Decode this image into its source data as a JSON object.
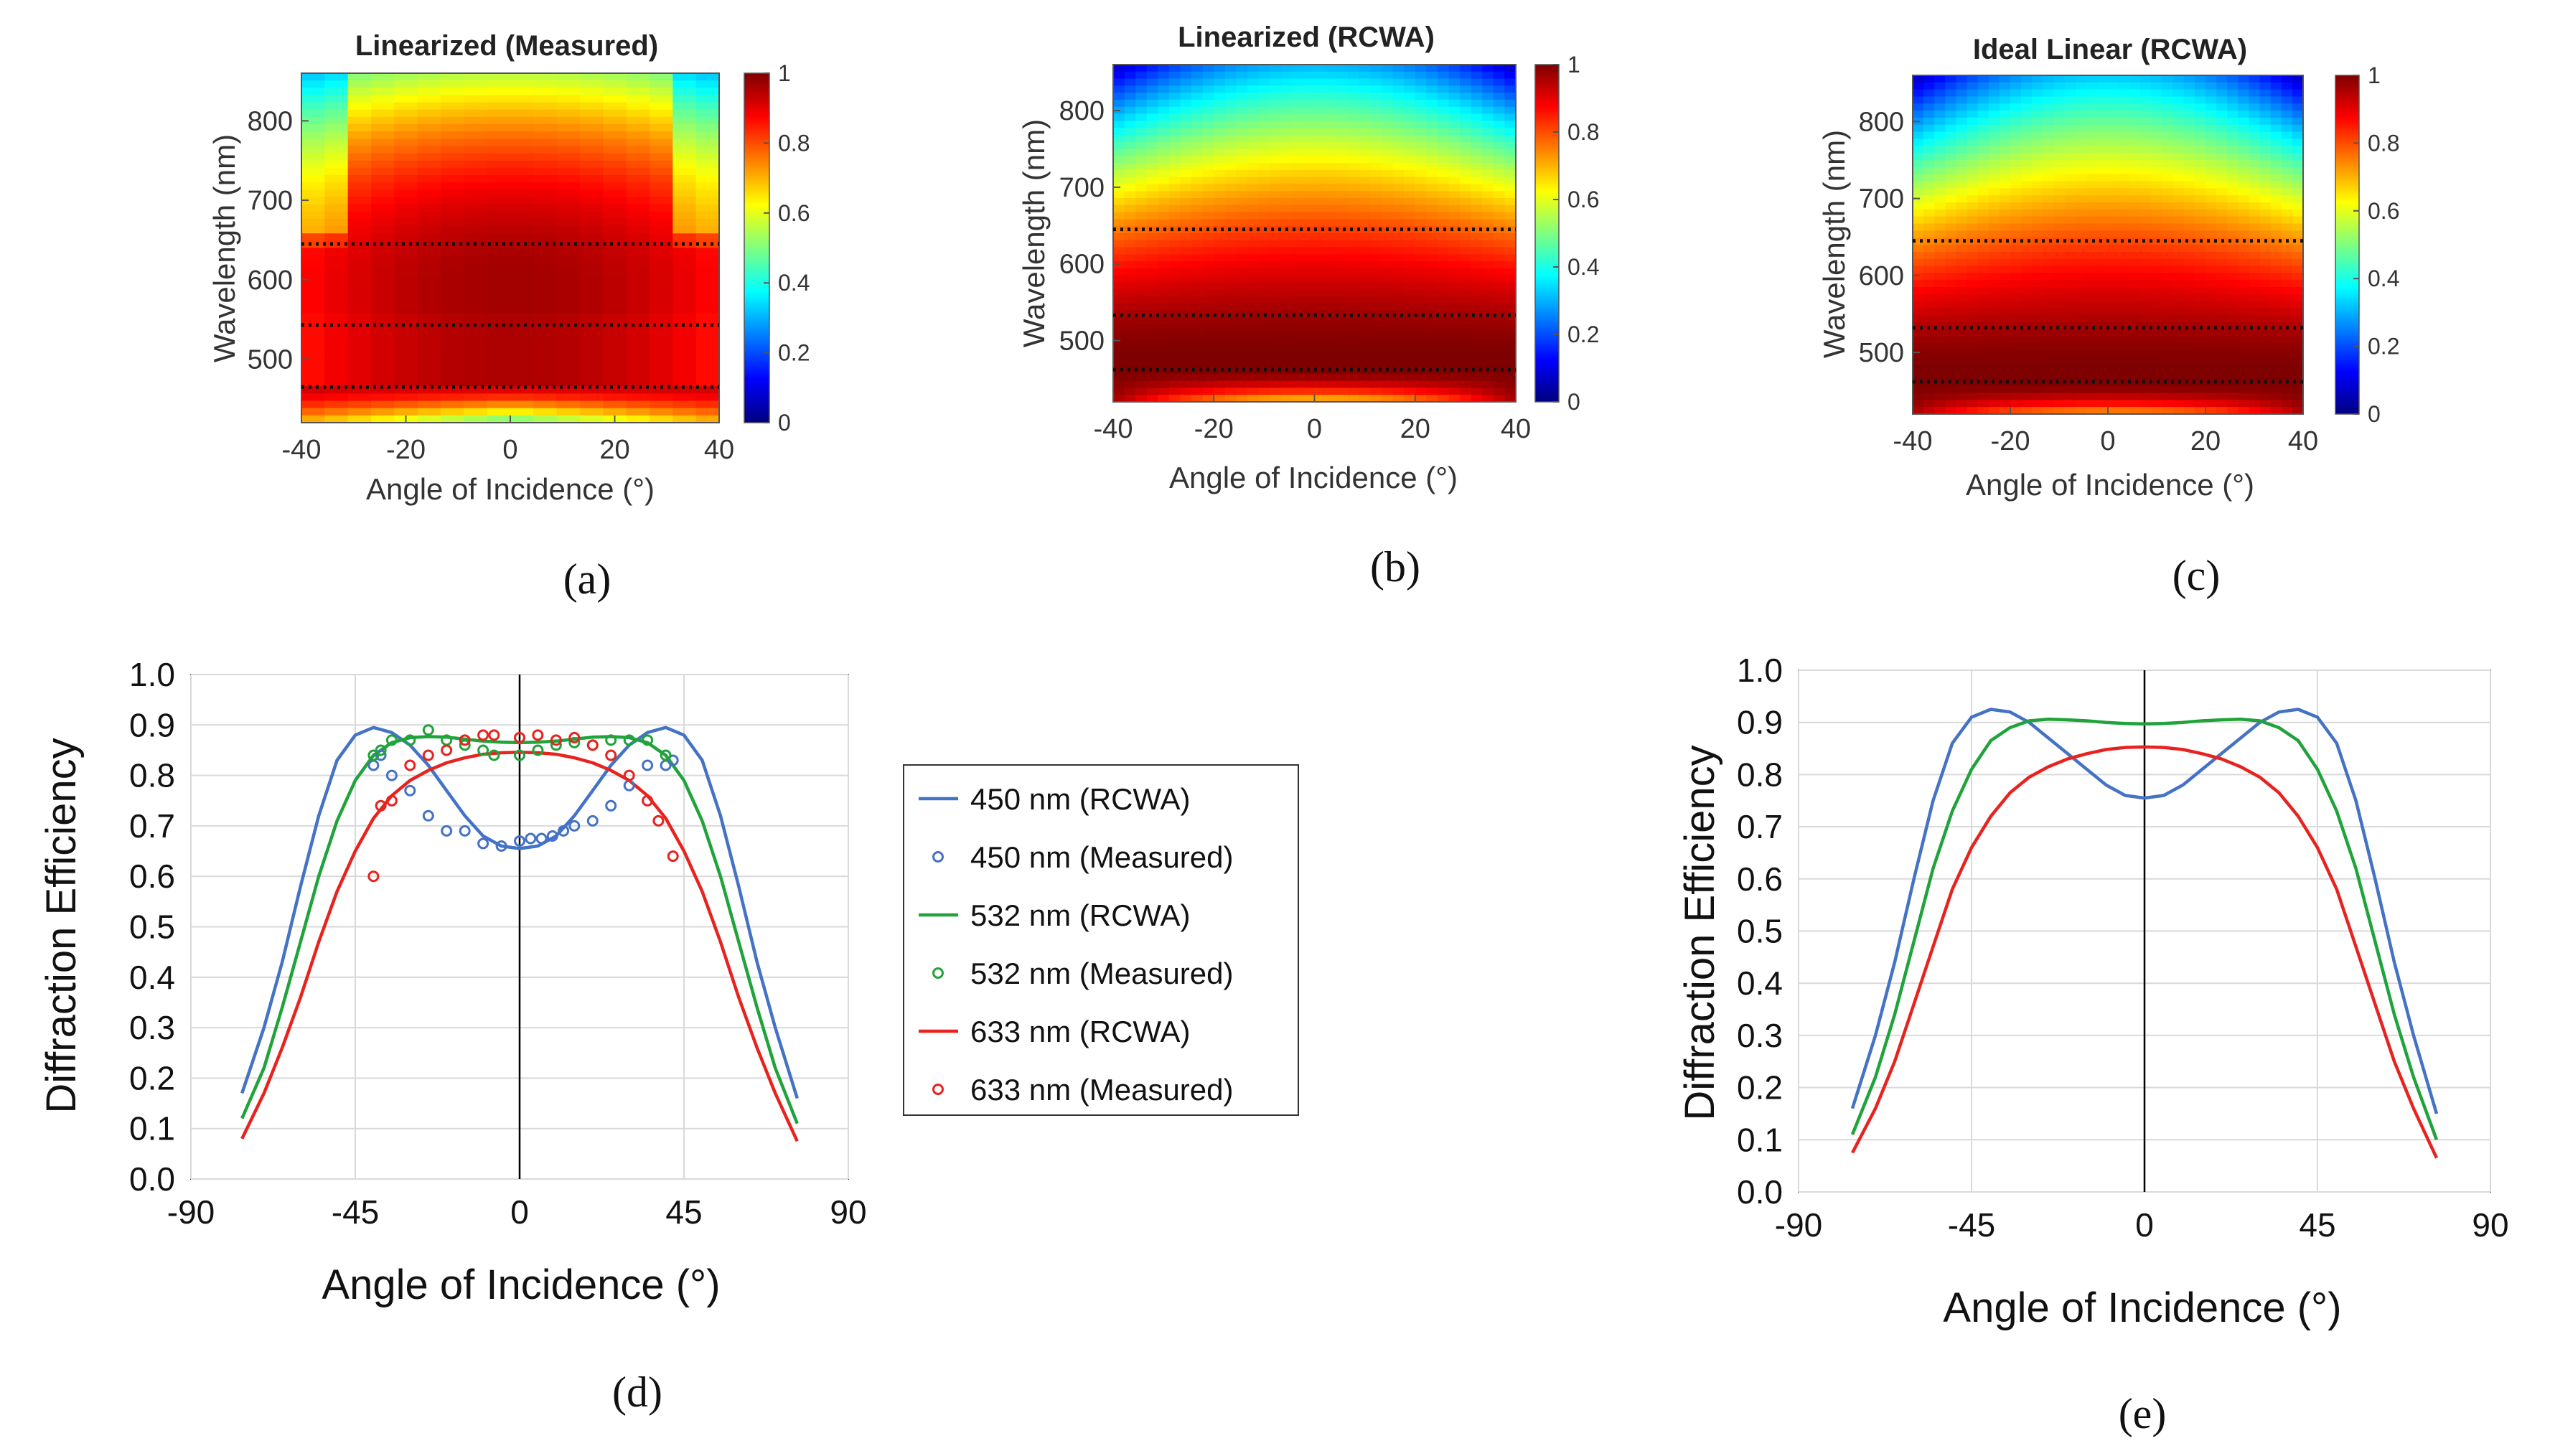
{
  "panels": {
    "a": "(a)",
    "b": "(b)",
    "c": "(c)",
    "d": "(d)",
    "e": "(e)"
  },
  "colors": {
    "blue": "#4472C4",
    "green": "#1FA33A",
    "red": "#E8231F",
    "jet": [
      "#00007F",
      "#0000FF",
      "#007FFF",
      "#00FFFF",
      "#7FFF7F",
      "#FFFF00",
      "#FF7F00",
      "#FF0000",
      "#7F0000"
    ]
  },
  "chart_data": [
    {
      "id": "a",
      "type": "heatmap",
      "title": "Linearized (Measured)",
      "xlabel": "Angle of Incidence (°)",
      "ylabel": "Wavelength (nm)",
      "xlim": [
        -40,
        40
      ],
      "ylim": [
        420,
        860
      ],
      "xticks": [
        -40,
        -20,
        0,
        20,
        40
      ],
      "yticks": [
        500,
        600,
        700,
        800
      ],
      "colorbar": {
        "ticks": [
          0,
          0.2,
          0.4,
          0.6,
          0.8,
          1
        ],
        "range": [
          0,
          1
        ]
      },
      "dotted_lines_nm": [
        465,
        543,
        645
      ],
      "model": "measured"
    },
    {
      "id": "b",
      "type": "heatmap",
      "title": "Linearized (RCWA)",
      "xlabel": "Angle of Incidence (°)",
      "ylabel": "Wavelength (nm)",
      "xlim": [
        -40,
        40
      ],
      "ylim": [
        420,
        860
      ],
      "xticks": [
        -40,
        -20,
        0,
        20,
        40
      ],
      "yticks": [
        500,
        600,
        700,
        800
      ],
      "colorbar": {
        "ticks": [
          0,
          0.2,
          0.4,
          0.6,
          0.8,
          1
        ],
        "range": [
          0,
          1
        ]
      },
      "dotted_lines_nm": [
        462,
        533,
        645
      ],
      "model": "rcwa"
    },
    {
      "id": "c",
      "type": "heatmap",
      "title": "Ideal Linear (RCWA)",
      "xlabel": "Angle of Incidence (°)",
      "ylabel": "Wavelength (nm)",
      "xlim": [
        -40,
        40
      ],
      "ylim": [
        420,
        860
      ],
      "xticks": [
        -40,
        -20,
        0,
        20,
        40
      ],
      "yticks": [
        500,
        600,
        700,
        800
      ],
      "colorbar": {
        "ticks": [
          0,
          0.2,
          0.4,
          0.6,
          0.8,
          1
        ],
        "range": [
          0,
          1
        ]
      },
      "dotted_lines_nm": [
        462,
        532,
        645
      ],
      "model": "ideal"
    },
    {
      "id": "d",
      "type": "line",
      "xlabel": "Angle of Incidence (°)",
      "ylabel": "Diffraction Efficiency",
      "xlim": [
        -90,
        90
      ],
      "ylim": [
        0,
        1
      ],
      "xticks": [
        -90,
        -45,
        0,
        45,
        90
      ],
      "yticks": [
        "0.0",
        "0.1",
        "0.2",
        "0.3",
        "0.4",
        "0.5",
        "0.6",
        "0.7",
        "0.8",
        "0.9",
        "1.0"
      ],
      "legend": [
        "450 nm (RCWA)",
        "450 nm (Measured)",
        "532 nm (RCWA)",
        "532 nm (Measured)",
        "633 nm (RCWA)",
        "633 nm (Measured)"
      ],
      "x": [
        -76,
        -70,
        -65,
        -60,
        -55,
        -50,
        -45,
        -40,
        -35,
        -30,
        -25,
        -20,
        -15,
        -10,
        -5,
        0,
        5,
        10,
        15,
        20,
        25,
        30,
        35,
        40,
        45,
        50,
        55,
        60,
        65,
        70,
        76
      ],
      "series": [
        {
          "name": "450 nm (RCWA)",
          "color": "blue",
          "values": [
            0.17,
            0.3,
            0.43,
            0.58,
            0.72,
            0.83,
            0.88,
            0.895,
            0.885,
            0.86,
            0.82,
            0.77,
            0.72,
            0.68,
            0.66,
            0.655,
            0.66,
            0.68,
            0.72,
            0.77,
            0.82,
            0.86,
            0.885,
            0.895,
            0.88,
            0.83,
            0.72,
            0.58,
            0.43,
            0.3,
            0.16
          ]
        },
        {
          "name": "532 nm (RCWA)",
          "color": "green",
          "values": [
            0.12,
            0.22,
            0.34,
            0.47,
            0.6,
            0.71,
            0.79,
            0.84,
            0.865,
            0.875,
            0.877,
            0.876,
            0.872,
            0.868,
            0.866,
            0.865,
            0.866,
            0.868,
            0.872,
            0.876,
            0.877,
            0.875,
            0.865,
            0.84,
            0.79,
            0.71,
            0.6,
            0.47,
            0.34,
            0.22,
            0.11
          ]
        },
        {
          "name": "633 nm (RCWA)",
          "color": "red",
          "values": [
            0.08,
            0.17,
            0.26,
            0.36,
            0.47,
            0.57,
            0.65,
            0.715,
            0.76,
            0.79,
            0.81,
            0.825,
            0.835,
            0.842,
            0.845,
            0.846,
            0.845,
            0.842,
            0.835,
            0.825,
            0.81,
            0.79,
            0.76,
            0.715,
            0.65,
            0.57,
            0.47,
            0.36,
            0.26,
            0.17,
            0.075
          ]
        }
      ],
      "measured": [
        {
          "name": "450 nm (Measured)",
          "color": "blue",
          "x": [
            -40,
            -38,
            -35,
            -30,
            -25,
            -20,
            -15,
            -10,
            -5,
            0,
            3,
            6,
            9,
            12,
            15,
            20,
            25,
            30,
            35,
            40,
            42
          ],
          "y": [
            0.82,
            0.84,
            0.8,
            0.77,
            0.72,
            0.69,
            0.69,
            0.665,
            0.66,
            0.67,
            0.675,
            0.675,
            0.68,
            0.69,
            0.7,
            0.71,
            0.74,
            0.78,
            0.82,
            0.82,
            0.83
          ]
        },
        {
          "name": "532 nm (Measured)",
          "color": "green",
          "x": [
            -40,
            -38,
            -35,
            -30,
            -25,
            -20,
            -15,
            -10,
            -7,
            0,
            5,
            10,
            15,
            20,
            25,
            30,
            35,
            40
          ],
          "y": [
            0.84,
            0.85,
            0.87,
            0.87,
            0.89,
            0.87,
            0.86,
            0.85,
            0.84,
            0.84,
            0.85,
            0.86,
            0.865,
            0.86,
            0.87,
            0.87,
            0.87,
            0.84
          ]
        },
        {
          "name": "633 nm (Measured)",
          "color": "red",
          "x": [
            -40,
            -38,
            -35,
            -30,
            -25,
            -20,
            -15,
            -10,
            -7,
            0,
            5,
            10,
            15,
            20,
            25,
            30,
            35,
            38,
            42
          ],
          "y": [
            0.6,
            0.74,
            0.75,
            0.82,
            0.84,
            0.85,
            0.87,
            0.88,
            0.88,
            0.875,
            0.88,
            0.87,
            0.875,
            0.86,
            0.84,
            0.8,
            0.75,
            0.71,
            0.64
          ]
        }
      ]
    },
    {
      "id": "e",
      "type": "line",
      "xlabel": "Angle of Incidence (°)",
      "ylabel": "Diffraction Efficiency",
      "xlim": [
        -90,
        90
      ],
      "ylim": [
        0,
        1
      ],
      "xticks": [
        -90,
        -45,
        0,
        45,
        90
      ],
      "yticks": [
        "0.0",
        "0.1",
        "0.2",
        "0.3",
        "0.4",
        "0.5",
        "0.6",
        "0.7",
        "0.8",
        "0.9",
        "1.0"
      ],
      "x": [
        -76,
        -70,
        -65,
        -60,
        -55,
        -50,
        -45,
        -40,
        -35,
        -30,
        -25,
        -20,
        -15,
        -10,
        -5,
        0,
        5,
        10,
        15,
        20,
        25,
        30,
        35,
        40,
        45,
        50,
        55,
        60,
        65,
        70,
        76
      ],
      "series": [
        {
          "name": "450 nm (RCWA)",
          "color": "blue",
          "values": [
            0.16,
            0.3,
            0.44,
            0.6,
            0.75,
            0.86,
            0.91,
            0.925,
            0.92,
            0.9,
            0.87,
            0.84,
            0.81,
            0.78,
            0.76,
            0.755,
            0.76,
            0.78,
            0.81,
            0.84,
            0.87,
            0.9,
            0.92,
            0.925,
            0.91,
            0.86,
            0.75,
            0.6,
            0.44,
            0.3,
            0.15
          ]
        },
        {
          "name": "532 nm (RCWA)",
          "color": "green",
          "values": [
            0.11,
            0.22,
            0.34,
            0.48,
            0.62,
            0.73,
            0.81,
            0.865,
            0.89,
            0.903,
            0.906,
            0.905,
            0.903,
            0.9,
            0.898,
            0.897,
            0.898,
            0.9,
            0.903,
            0.905,
            0.906,
            0.903,
            0.89,
            0.865,
            0.81,
            0.73,
            0.62,
            0.48,
            0.34,
            0.22,
            0.1
          ]
        },
        {
          "name": "633 nm (RCWA)",
          "color": "red",
          "values": [
            0.075,
            0.16,
            0.25,
            0.36,
            0.47,
            0.58,
            0.66,
            0.72,
            0.765,
            0.795,
            0.815,
            0.83,
            0.84,
            0.848,
            0.852,
            0.853,
            0.852,
            0.848,
            0.84,
            0.83,
            0.815,
            0.795,
            0.765,
            0.72,
            0.66,
            0.58,
            0.47,
            0.36,
            0.25,
            0.16,
            0.065
          ]
        }
      ]
    }
  ]
}
